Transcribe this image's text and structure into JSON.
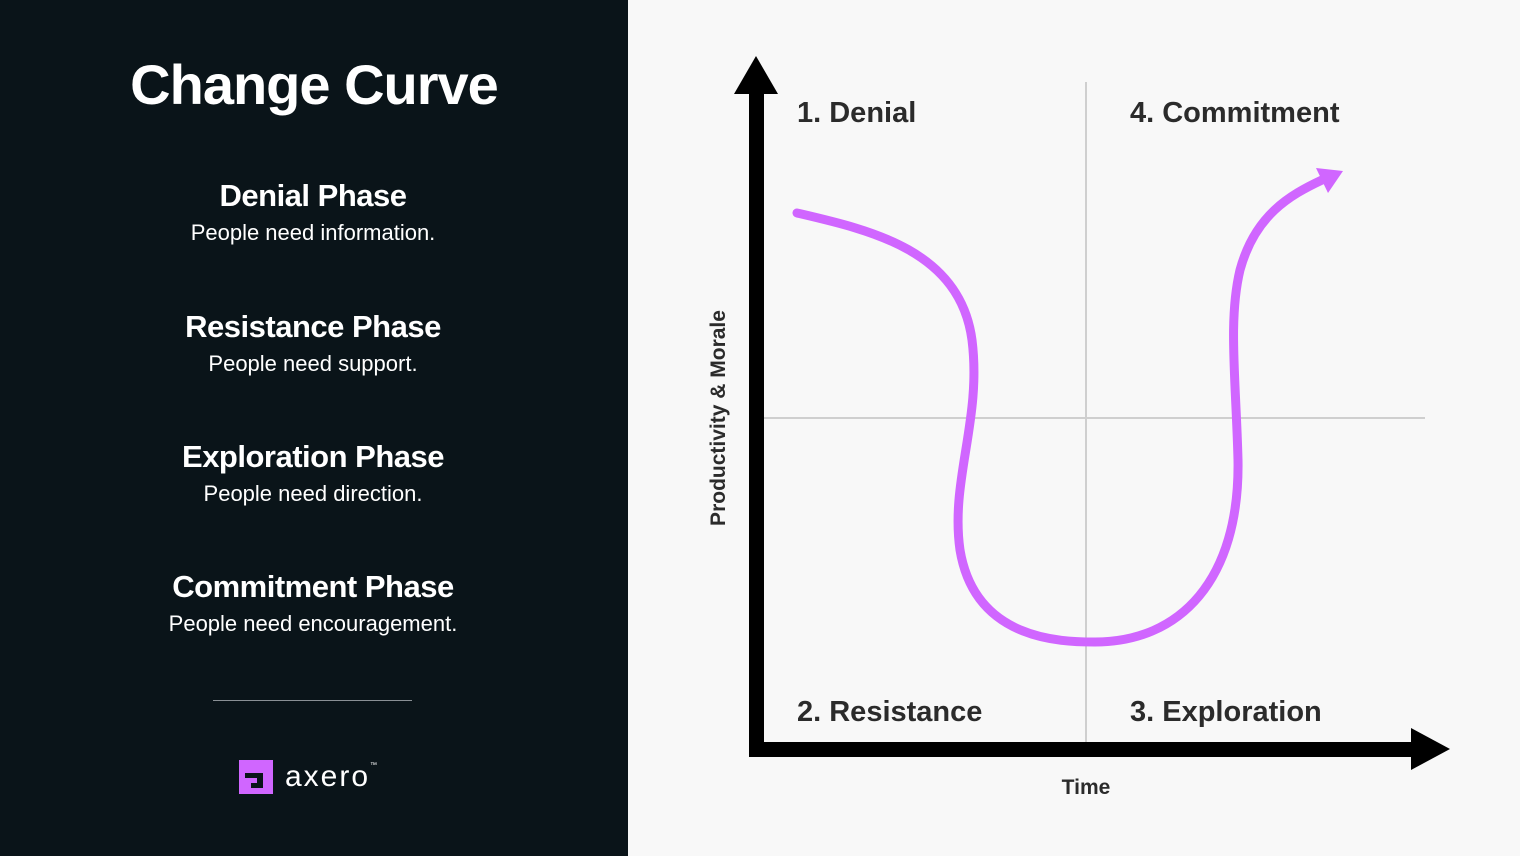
{
  "title": "Change Curve",
  "phases": [
    {
      "name": "Denial Phase",
      "need": "People need information."
    },
    {
      "name": "Resistance Phase",
      "need": "People need support."
    },
    {
      "name": "Exploration Phase",
      "need": "People need direction."
    },
    {
      "name": "Commitment Phase",
      "need": "People need encouragement."
    }
  ],
  "logo": {
    "text": "axero",
    "tm": "™"
  },
  "diagram": {
    "quadrants": [
      "1. Denial",
      "2. Resistance",
      "3. Exploration",
      "4. Commitment"
    ],
    "x_axis_label": "Time",
    "y_axis_label": "Productivity & Morale"
  },
  "colors": {
    "left_bg": "#0a1419",
    "curve": "#d066ff",
    "right_bg": "#f8f8f8"
  }
}
